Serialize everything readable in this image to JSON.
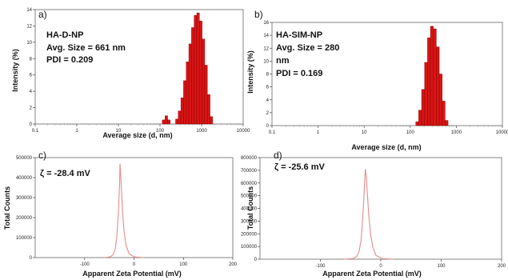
{
  "chart_data": [
    {
      "type": "bar",
      "panel_label": "a)",
      "annotations": [
        "HA-D-NP",
        "Avg. Size = 661 nm",
        "PDI = 0.209"
      ],
      "xlabel": "Average size (d, nm)",
      "ylabel": "Intensity (%)",
      "x_scale": "log",
      "xlim": [
        0.1,
        10000
      ],
      "ylim": [
        0,
        14
      ],
      "x_ticks": [
        0.1,
        1,
        10,
        100,
        1000,
        10000
      ],
      "x_tick_labels": [
        "0.1",
        "1",
        "10",
        "100",
        "1000",
        "10000"
      ],
      "y_ticks": [
        0,
        2,
        4,
        6,
        8,
        10,
        12,
        14
      ],
      "bar_color": "#d81414",
      "bins": [
        {
          "x": 122,
          "y": 0.5
        },
        {
          "x": 142,
          "y": 1.0
        },
        {
          "x": 164,
          "y": 0.5
        },
        {
          "x": 255,
          "y": 0.6
        },
        {
          "x": 295,
          "y": 1.6
        },
        {
          "x": 342,
          "y": 3.2
        },
        {
          "x": 396,
          "y": 5.3
        },
        {
          "x": 459,
          "y": 7.6
        },
        {
          "x": 531,
          "y": 9.8
        },
        {
          "x": 615,
          "y": 11.8
        },
        {
          "x": 712,
          "y": 13.3
        },
        {
          "x": 825,
          "y": 13.6
        },
        {
          "x": 955,
          "y": 12.6
        },
        {
          "x": 1106,
          "y": 10.4
        },
        {
          "x": 1281,
          "y": 7.2
        },
        {
          "x": 1484,
          "y": 3.6
        },
        {
          "x": 1718,
          "y": 0.9
        }
      ]
    },
    {
      "type": "bar",
      "panel_label": "b)",
      "annotations": [
        "HA-SIM-NP",
        "Avg. Size = 280",
        "nm",
        "PDI = 0.169"
      ],
      "xlabel": "Average size (d, nm)",
      "ylabel": "Intensity (%)",
      "x_scale": "log",
      "xlim": [
        0.1,
        10000
      ],
      "ylim": [
        0,
        16
      ],
      "x_ticks": [
        0.1,
        1,
        10,
        100,
        1000,
        10000
      ],
      "x_tick_labels": [
        "0.1",
        "1",
        "10",
        "100",
        "1000",
        "10000"
      ],
      "y_ticks": [
        0,
        2,
        4,
        6,
        8,
        10,
        12,
        14,
        16
      ],
      "bar_color": "#d81414",
      "bins": [
        {
          "x": 142,
          "y": 0.6
        },
        {
          "x": 164,
          "y": 2.4
        },
        {
          "x": 190,
          "y": 5.6
        },
        {
          "x": 220,
          "y": 9.8
        },
        {
          "x": 255,
          "y": 13.6
        },
        {
          "x": 295,
          "y": 15.4
        },
        {
          "x": 342,
          "y": 15.0
        },
        {
          "x": 396,
          "y": 12.2
        },
        {
          "x": 459,
          "y": 8.0
        },
        {
          "x": 531,
          "y": 3.8
        },
        {
          "x": 615,
          "y": 0.8
        }
      ]
    },
    {
      "type": "line",
      "panel_label": "c)",
      "annotations": [
        "ζ = -28.4 mV"
      ],
      "xlabel": "Apparent Zeta Potential (mV)",
      "ylabel": "Total Counts",
      "xlim": [
        -200,
        200
      ],
      "ylim": [
        0,
        500000
      ],
      "x_ticks": [
        -100,
        0,
        100,
        200
      ],
      "y_ticks": [
        0,
        100000,
        200000,
        300000,
        400000,
        500000
      ],
      "line_color": "#e88a8a",
      "x": [
        -60,
        -48,
        -42,
        -38,
        -35,
        -33,
        -31,
        -29,
        -28.4,
        -27,
        -25,
        -23,
        -20,
        -16,
        -10,
        0,
        20
      ],
      "y": [
        0,
        4000,
        15000,
        45000,
        100000,
        170000,
        260000,
        380000,
        470000,
        420000,
        320000,
        220000,
        130000,
        60000,
        20000,
        4000,
        0
      ]
    },
    {
      "type": "line",
      "panel_label": "d)",
      "annotations": [
        "ζ = -25.6 mV"
      ],
      "xlabel": "Apparent Zeta Potential (mV)",
      "ylabel": "Total Counts",
      "xlim": [
        -200,
        200
      ],
      "ylim": [
        0,
        800000
      ],
      "x_ticks": [
        -100,
        0,
        100,
        200
      ],
      "y_ticks": [
        0,
        100000,
        200000,
        300000,
        400000,
        500000,
        600000,
        700000,
        800000
      ],
      "line_color": "#e88a8a",
      "x": [
        -60,
        -46,
        -40,
        -36,
        -33,
        -31,
        -29,
        -27,
        -25.6,
        -24,
        -22,
        -20,
        -17,
        -13,
        -8,
        2,
        20
      ],
      "y": [
        0,
        5000,
        20000,
        60000,
        140000,
        250000,
        400000,
        580000,
        710000,
        650000,
        500000,
        350000,
        200000,
        90000,
        30000,
        5000,
        0
      ]
    }
  ]
}
